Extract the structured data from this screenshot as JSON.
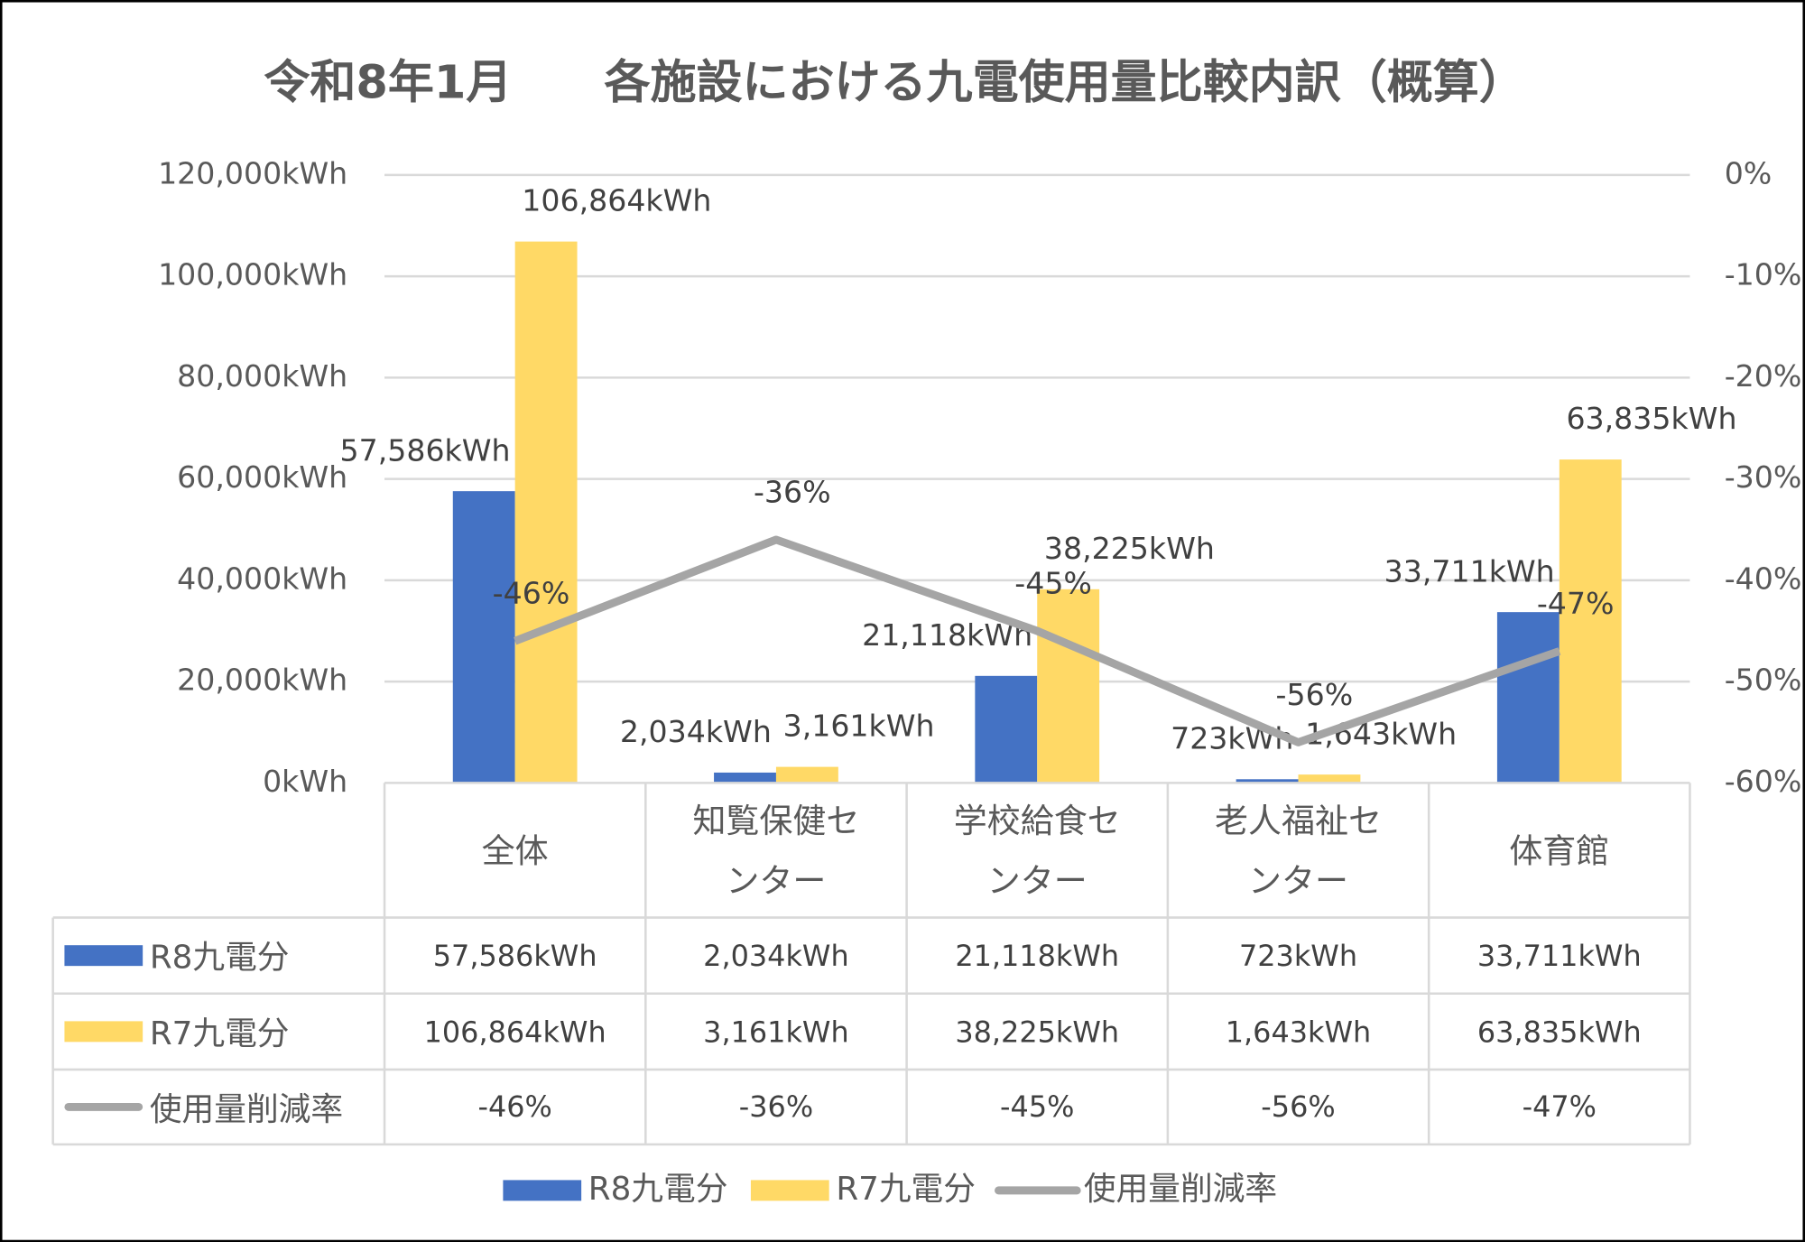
{
  "chart_data": {
    "type": "bar_line",
    "title": "令和8年1月　　各施設における九電使用量比較内訳（概算）",
    "categories": [
      "全体",
      "知覧保健センター",
      "学校給食センター",
      "老人福祉センター",
      "体育館"
    ],
    "series": [
      {
        "name": "R8九電分",
        "type": "bar",
        "color": "#4472c4",
        "values": [
          57586,
          2034,
          21118,
          723,
          33711
        ],
        "value_labels": [
          "57,586kWh",
          "2,034kWh",
          "21,118kWh",
          "723kWh",
          "33,711kWh"
        ]
      },
      {
        "name": "R7九電分",
        "type": "bar",
        "color": "#ffd966",
        "values": [
          106864,
          3161,
          38225,
          1643,
          63835
        ],
        "value_labels": [
          "106,864kWh",
          "3,161kWh",
          "38,225kWh",
          "1,643kWh",
          "63,835kWh"
        ]
      },
      {
        "name": "使用量削減率",
        "type": "line",
        "axis": "y2",
        "color": "#a5a5a5",
        "values": [
          -46,
          -36,
          -45,
          -56,
          -47
        ],
        "value_labels": [
          "-46%",
          "-36%",
          "-45%",
          "-56%",
          "-47%"
        ]
      }
    ],
    "ylim": [
      0,
      120000
    ],
    "yticks": [
      {
        "value": 0,
        "label": "0kWh"
      },
      {
        "value": 20000,
        "label": "20,000kWh"
      },
      {
        "value": 40000,
        "label": "40,000kWh"
      },
      {
        "value": 60000,
        "label": "60,000kWh"
      },
      {
        "value": 80000,
        "label": "80,000kWh"
      },
      {
        "value": 100000,
        "label": "100,000kWh"
      },
      {
        "value": 120000,
        "label": "120,000kWh"
      }
    ],
    "y2lim": [
      -60,
      0
    ],
    "y2ticks": [
      {
        "value": -60,
        "label": "-60%"
      },
      {
        "value": -50,
        "label": "-50%"
      },
      {
        "value": -40,
        "label": "-40%"
      },
      {
        "value": -30,
        "label": "-30%"
      },
      {
        "value": -20,
        "label": "-20%"
      },
      {
        "value": -10,
        "label": "-10%"
      },
      {
        "value": 0,
        "label": "0%"
      }
    ],
    "grid": true,
    "data_table": true,
    "legend": "bottom"
  }
}
